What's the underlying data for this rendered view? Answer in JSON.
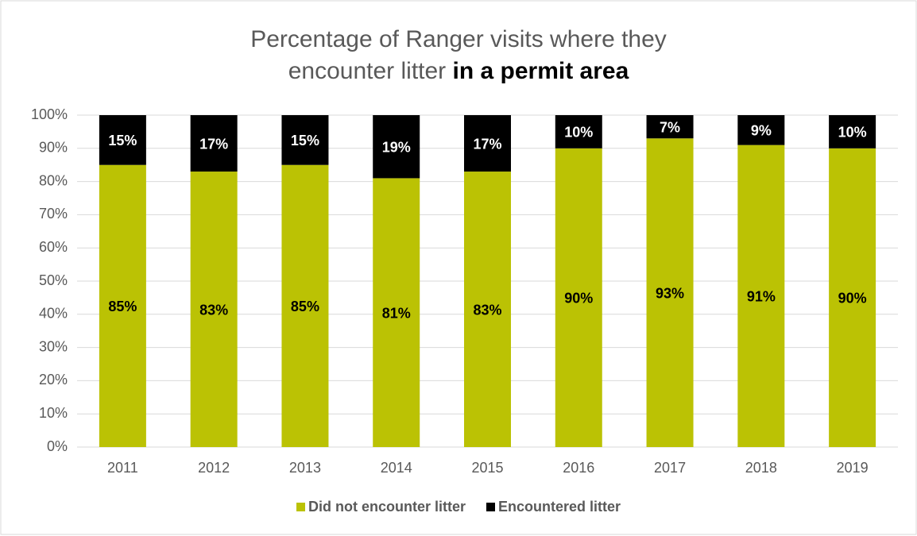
{
  "chart_data": {
    "type": "stacked_bar",
    "title": "Percentage of Ranger visits where they encounter litter",
    "title_bold": "in a permit area",
    "categories": [
      "2011",
      "2012",
      "2013",
      "2014",
      "2015",
      "2016",
      "2017",
      "2018",
      "2019"
    ],
    "series": [
      {
        "name": "Did not encounter litter",
        "color": "#bbc204",
        "label_color": "#000000",
        "values": [
          85,
          83,
          85,
          81,
          83,
          90,
          93,
          91,
          90
        ],
        "value_labels": [
          "85%",
          "83%",
          "85%",
          "81%",
          "83%",
          "90%",
          "93%",
          "91%",
          "90%"
        ]
      },
      {
        "name": "Encountered litter",
        "color": "#000000",
        "label_color": "#ffffff",
        "values": [
          15,
          17,
          15,
          19,
          17,
          10,
          7,
          9,
          10
        ],
        "value_labels": [
          "15%",
          "17%",
          "15%",
          "19%",
          "17%",
          "10%",
          "7%",
          "9%",
          "10%"
        ]
      }
    ],
    "ylim": [
      0,
      100
    ],
    "yticks": [
      {
        "value": 0,
        "label": "0%"
      },
      {
        "value": 10,
        "label": "10%"
      },
      {
        "value": 20,
        "label": "20%"
      },
      {
        "value": 30,
        "label": "30%"
      },
      {
        "value": 40,
        "label": "40%"
      },
      {
        "value": 50,
        "label": "50%"
      },
      {
        "value": 60,
        "label": "60%"
      },
      {
        "value": 70,
        "label": "70%"
      },
      {
        "value": 80,
        "label": "80%"
      },
      {
        "value": 90,
        "label": "90%"
      },
      {
        "value": 100,
        "label": "100%"
      }
    ],
    "grid": true,
    "legend": "bottom"
  }
}
